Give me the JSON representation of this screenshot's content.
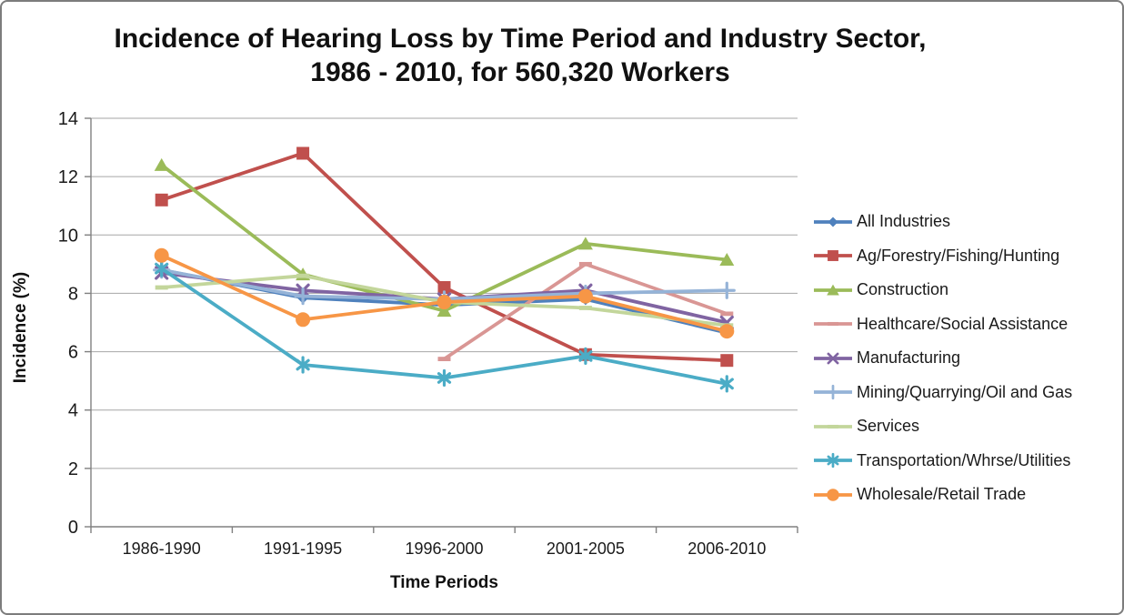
{
  "window": {
    "background": "#FFFFFF",
    "border_color": "#7C7C7C"
  },
  "title": {
    "line1": "Incidence of Hearing Loss by Time Period and Industry Sector,",
    "line2": "1986 - 2010, for 560,320 Workers"
  },
  "chart_data": {
    "type": "line",
    "title": "Incidence of Hearing Loss by Time Period and Industry Sector, 1986 - 2010, for 560,320 Workers",
    "xlabel": "Time Periods",
    "ylabel": "Incidence (%)",
    "ylim": [
      0,
      14
    ],
    "y_ticks": [
      0,
      2,
      4,
      6,
      8,
      10,
      12,
      14
    ],
    "grid": "horizontal",
    "legend_position": "right",
    "axis_color": "#808080",
    "gridline_color": "#A6A6A6",
    "tick_label_color": "#1A1A1A",
    "categories": [
      "1986-1990",
      "1991-1995",
      "1996-2000",
      "2001-2005",
      "2006-2010"
    ],
    "series": [
      {
        "name": "All Industries",
        "color": "#4F81BD",
        "marker": "diamond",
        "values": [
          8.8,
          7.85,
          7.6,
          7.8,
          6.65
        ]
      },
      {
        "name": "Ag/Forestry/Fishing/Hunting",
        "color": "#C0504D",
        "marker": "square",
        "values": [
          11.2,
          12.8,
          8.2,
          5.9,
          5.7
        ]
      },
      {
        "name": "Construction",
        "color": "#9BBB59",
        "marker": "triangle",
        "values": [
          12.4,
          8.65,
          7.4,
          9.7,
          9.15
        ]
      },
      {
        "name": "Healthcare/Social Assistance",
        "color": "#D99694",
        "marker": "dash",
        "values": [
          null,
          null,
          5.75,
          9.0,
          7.3
        ]
      },
      {
        "name": "Manufacturing",
        "color": "#8064A2",
        "marker": "x",
        "values": [
          8.7,
          8.1,
          7.8,
          8.1,
          7.0
        ]
      },
      {
        "name": "Mining/Quarrying/Oil and Gas",
        "color": "#95B3D7",
        "marker": "plus",
        "values": [
          8.8,
          7.9,
          7.8,
          8.0,
          8.1
        ]
      },
      {
        "name": "Services",
        "color": "#C3D69B",
        "marker": "dash",
        "values": [
          8.2,
          8.6,
          7.7,
          7.5,
          6.9
        ]
      },
      {
        "name": "Transportation/Whrse/Utilities",
        "color": "#4BACC6",
        "marker": "asterisk",
        "values": [
          8.85,
          5.55,
          5.1,
          5.85,
          4.9
        ]
      },
      {
        "name": "Wholesale/Retail Trade",
        "color": "#F79646",
        "marker": "circle",
        "values": [
          9.3,
          7.1,
          7.7,
          7.9,
          6.7
        ]
      }
    ]
  }
}
